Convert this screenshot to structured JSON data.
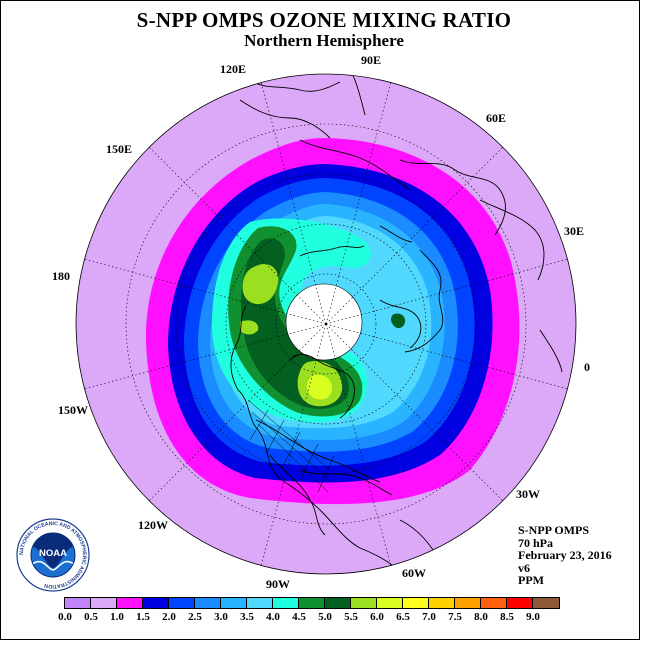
{
  "title": "S-NPP OMPS OZONE MIXING RATIO",
  "subtitle": "Northern Hemisphere",
  "longitude_labels": [
    "90E",
    "60E",
    "30E",
    "0",
    "30W",
    "60W",
    "90W",
    "120W",
    "150W",
    "180",
    "150E",
    "120E"
  ],
  "info": {
    "instrument": "S-NPP OMPS",
    "level": "70 hPa",
    "date": "February 23, 2016",
    "version": "v6",
    "unit": "PPM"
  },
  "colorbar": {
    "ticks": [
      "0.0",
      "0.5",
      "1.0",
      "1.5",
      "2.0",
      "2.5",
      "3.0",
      "3.5",
      "4.0",
      "4.5",
      "5.0",
      "5.5",
      "6.0",
      "6.5",
      "7.0",
      "7.5",
      "8.0",
      "8.5",
      "9.0"
    ],
    "colors": [
      "#c084f8",
      "#dca8f8",
      "#ff10ff",
      "#0000e0",
      "#0044ff",
      "#1a8cff",
      "#2ab4ff",
      "#50d8ff",
      "#20ffe0",
      "#109030",
      "#046020",
      "#9ae020",
      "#d8ff20",
      "#ffff20",
      "#ffd000",
      "#ffa000",
      "#ff6010",
      "#ff0000",
      "#8c5838"
    ]
  },
  "logo": {
    "text": "NOAA",
    "ring_text": "NATIONAL OCEANIC AND ATMOSPHERIC ADMINISTRATION"
  }
}
